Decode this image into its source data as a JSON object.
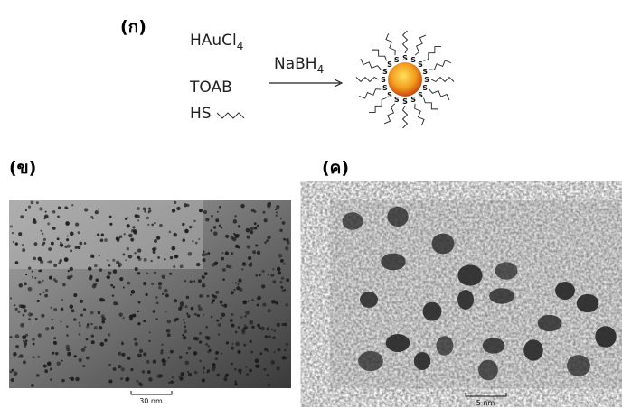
{
  "figure": {
    "panel_a": {
      "label": "(ก)",
      "reagents": [
        {
          "text": "HAuCl",
          "sub": "4"
        },
        {
          "text": "TOAB"
        },
        {
          "text": "HS"
        }
      ],
      "reducer": {
        "text": "NaBH",
        "sub": "4"
      },
      "ligand_atom": "S"
    },
    "panel_b": {
      "label": "(ข)",
      "scale_bar": "30 nm"
    },
    "panel_c": {
      "label": "(ค)",
      "scale_bar": "5 nm"
    }
  }
}
